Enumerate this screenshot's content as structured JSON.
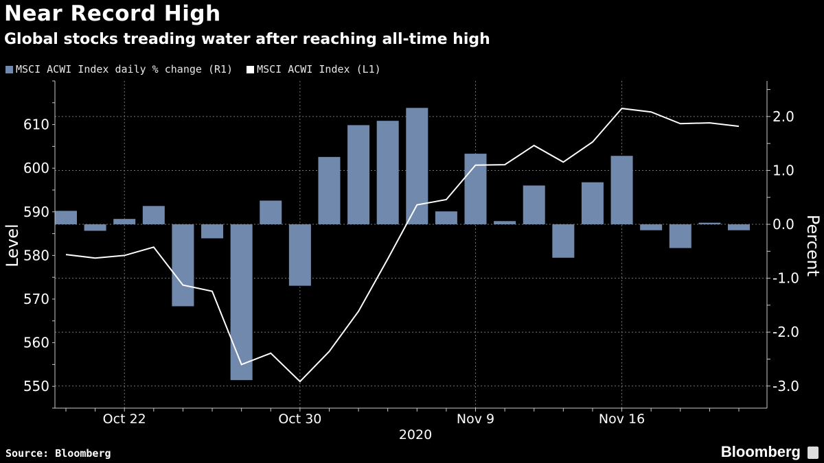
{
  "header": {
    "title": "Near Record High",
    "subtitle": "Global stocks treading water after reaching all-time high"
  },
  "footer": {
    "source": "Source: Bloomberg",
    "logo": "Bloomberg"
  },
  "chart_data": {
    "type": "bar+line",
    "legend_position": "top-left",
    "grid": true,
    "colors": {
      "bars": "#7289ae",
      "line": "#ffffff",
      "background": "#000000"
    },
    "dates": [
      "Oct 20",
      "Oct 21",
      "Oct 22",
      "Oct 23",
      "Oct 26",
      "Oct 27",
      "Oct 28",
      "Oct 29",
      "Oct 30",
      "Nov 2",
      "Nov 3",
      "Nov 4",
      "Nov 5",
      "Nov 6",
      "Nov 9",
      "Nov 10",
      "Nov 11",
      "Nov 12",
      "Nov 13",
      "Nov 16",
      "Nov 17",
      "Nov 18",
      "Nov 19",
      "Nov 20"
    ],
    "x_tick_labels": [
      {
        "label": "Oct 22",
        "date": "Oct 22"
      },
      {
        "label": "Oct 30",
        "date": "Oct 30"
      },
      {
        "label": "Nov 9",
        "date": "Nov 9"
      },
      {
        "label": "Nov 16",
        "date": "Nov 16"
      }
    ],
    "x_year_label": "2020",
    "series": [
      {
        "name": "MSCI ACWI Index daily % change (R1)",
        "type": "bar",
        "axis": "right",
        "values": [
          0.25,
          -0.12,
          0.1,
          0.34,
          -1.52,
          -0.26,
          -2.89,
          0.44,
          -1.14,
          1.25,
          1.84,
          1.92,
          2.16,
          0.24,
          1.31,
          0.06,
          0.72,
          -0.62,
          0.78,
          1.27,
          -0.11,
          -0.44,
          0.03,
          -0.11
        ]
      },
      {
        "name": "MSCI ACWI Index  (L1)",
        "type": "line",
        "axis": "left",
        "values": [
          580.2,
          579.4,
          580.0,
          581.9,
          573.2,
          571.8,
          555.0,
          557.6,
          551.1,
          558.0,
          567.2,
          579.2,
          591.6,
          592.8,
          600.7,
          600.8,
          605.2,
          601.4,
          606.0,
          613.7,
          612.9,
          610.2,
          610.4,
          609.6
        ]
      }
    ],
    "y_left": {
      "label": "Level",
      "range": [
        545,
        620
      ],
      "ticks": [
        550,
        560,
        570,
        580,
        590,
        600,
        610
      ]
    },
    "y_right": {
      "label": "Percent",
      "range": [
        -3.41,
        2.66
      ],
      "ticks": [
        "2.0",
        "1.0",
        "0.0",
        "-1.0",
        "-2.0",
        "-3.0"
      ]
    }
  }
}
